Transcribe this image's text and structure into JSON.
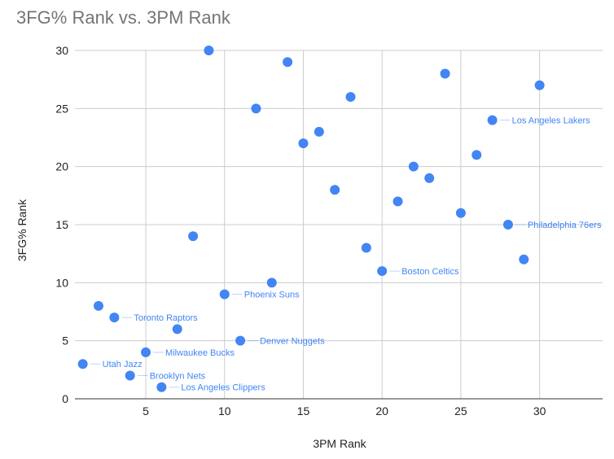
{
  "chart_data": {
    "type": "scatter",
    "title": "3FG% Rank vs. 3PM Rank",
    "xlabel": "3PM Rank",
    "ylabel": "3FG% Rank",
    "xlim": [
      0.5,
      34
    ],
    "ylim": [
      0,
      30
    ],
    "xticks": [
      5,
      10,
      15,
      20,
      25,
      30
    ],
    "yticks": [
      0,
      5,
      10,
      15,
      20,
      25,
      30
    ],
    "grid": true,
    "color": "#4285f4",
    "points": [
      {
        "x": 1,
        "y": 3,
        "label": "Utah Jazz"
      },
      {
        "x": 2,
        "y": 8,
        "label": ""
      },
      {
        "x": 3,
        "y": 7,
        "label": "Toronto Raptors"
      },
      {
        "x": 4,
        "y": 2,
        "label": "Brooklyn Nets"
      },
      {
        "x": 5,
        "y": 4,
        "label": "Milwaukee Bucks"
      },
      {
        "x": 6,
        "y": 1,
        "label": "Los Angeles Clippers"
      },
      {
        "x": 7,
        "y": 6,
        "label": ""
      },
      {
        "x": 8,
        "y": 14,
        "label": ""
      },
      {
        "x": 9,
        "y": 30,
        "label": ""
      },
      {
        "x": 10,
        "y": 9,
        "label": "Phoenix Suns"
      },
      {
        "x": 11,
        "y": 5,
        "label": "Denver Nuggets"
      },
      {
        "x": 12,
        "y": 25,
        "label": ""
      },
      {
        "x": 13,
        "y": 10,
        "label": ""
      },
      {
        "x": 14,
        "y": 29,
        "label": ""
      },
      {
        "x": 15,
        "y": 22,
        "label": ""
      },
      {
        "x": 16,
        "y": 23,
        "label": ""
      },
      {
        "x": 17,
        "y": 18,
        "label": ""
      },
      {
        "x": 18,
        "y": 26,
        "label": ""
      },
      {
        "x": 19,
        "y": 13,
        "label": ""
      },
      {
        "x": 20,
        "y": 11,
        "label": "Boston Celtics"
      },
      {
        "x": 21,
        "y": 17,
        "label": ""
      },
      {
        "x": 22,
        "y": 20,
        "label": ""
      },
      {
        "x": 23,
        "y": 19,
        "label": ""
      },
      {
        "x": 24,
        "y": 28,
        "label": ""
      },
      {
        "x": 25,
        "y": 16,
        "label": ""
      },
      {
        "x": 26,
        "y": 21,
        "label": ""
      },
      {
        "x": 27,
        "y": 24,
        "label": "Los Angeles Lakers"
      },
      {
        "x": 28,
        "y": 15,
        "label": "Philadelphia 76ers"
      },
      {
        "x": 29,
        "y": 12,
        "label": ""
      },
      {
        "x": 30,
        "y": 27,
        "label": ""
      }
    ]
  }
}
